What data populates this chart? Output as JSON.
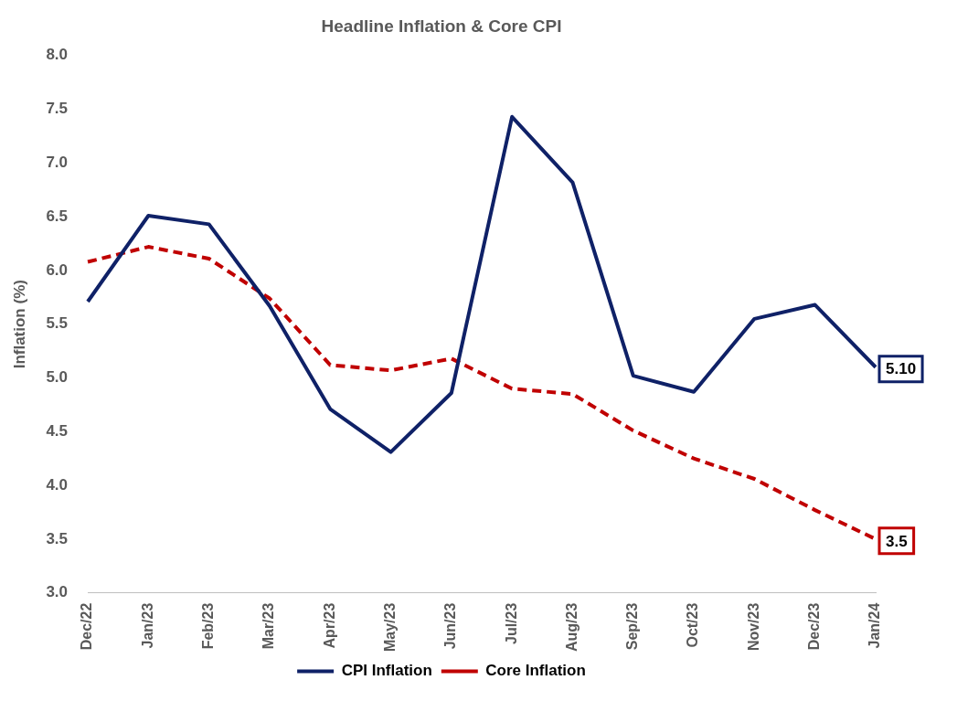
{
  "chart_data": {
    "type": "line",
    "title": "Headline Inflation & Core CPI",
    "ylabel": "Inflation (%)",
    "categories": [
      "Dec/22",
      "Jan/23",
      "Feb/23",
      "Mar/23",
      "Apr/23",
      "May/23",
      "Jun/23",
      "Jul/23",
      "Aug/23",
      "Sep/23",
      "Oct/23",
      "Nov/23",
      "Dec/23",
      "Jan/24"
    ],
    "series": [
      {
        "name": "CPI Inflation",
        "color": "#0f2167",
        "line_style": "solid",
        "values": [
          5.71,
          6.51,
          6.43,
          5.67,
          4.71,
          4.31,
          4.86,
          7.43,
          6.82,
          5.02,
          4.87,
          5.55,
          5.68,
          5.1
        ],
        "value_labels": [
          null,
          null,
          null,
          null,
          null,
          null,
          null,
          null,
          null,
          null,
          null,
          null,
          null,
          "5.10"
        ]
      },
      {
        "name": "Core Inflation",
        "color": "#c00000",
        "line_style": "dashed",
        "values": [
          6.08,
          6.22,
          6.11,
          5.74,
          5.12,
          5.07,
          5.18,
          4.9,
          4.85,
          4.51,
          4.25,
          4.06,
          3.77,
          3.5
        ],
        "value_labels": [
          null,
          null,
          null,
          null,
          null,
          null,
          null,
          null,
          null,
          null,
          null,
          null,
          null,
          "3.5"
        ]
      }
    ],
    "ylim": [
      3,
      8
    ],
    "yticks": [
      {
        "value": 3,
        "label": "3.0"
      },
      {
        "value": 3.5,
        "label": "3.5"
      },
      {
        "value": 4,
        "label": "4.0"
      },
      {
        "value": 4.5,
        "label": "4.5"
      },
      {
        "value": 5,
        "label": "5.0"
      },
      {
        "value": 5.5,
        "label": "5.5"
      },
      {
        "value": 6,
        "label": "6.0"
      },
      {
        "value": 6.5,
        "label": "6.5"
      },
      {
        "value": 7,
        "label": "7.0"
      },
      {
        "value": 7.5,
        "label": "7.5"
      },
      {
        "value": 8,
        "label": "8.0"
      }
    ],
    "grid": false,
    "legend": "bottom",
    "marker": "none"
  }
}
